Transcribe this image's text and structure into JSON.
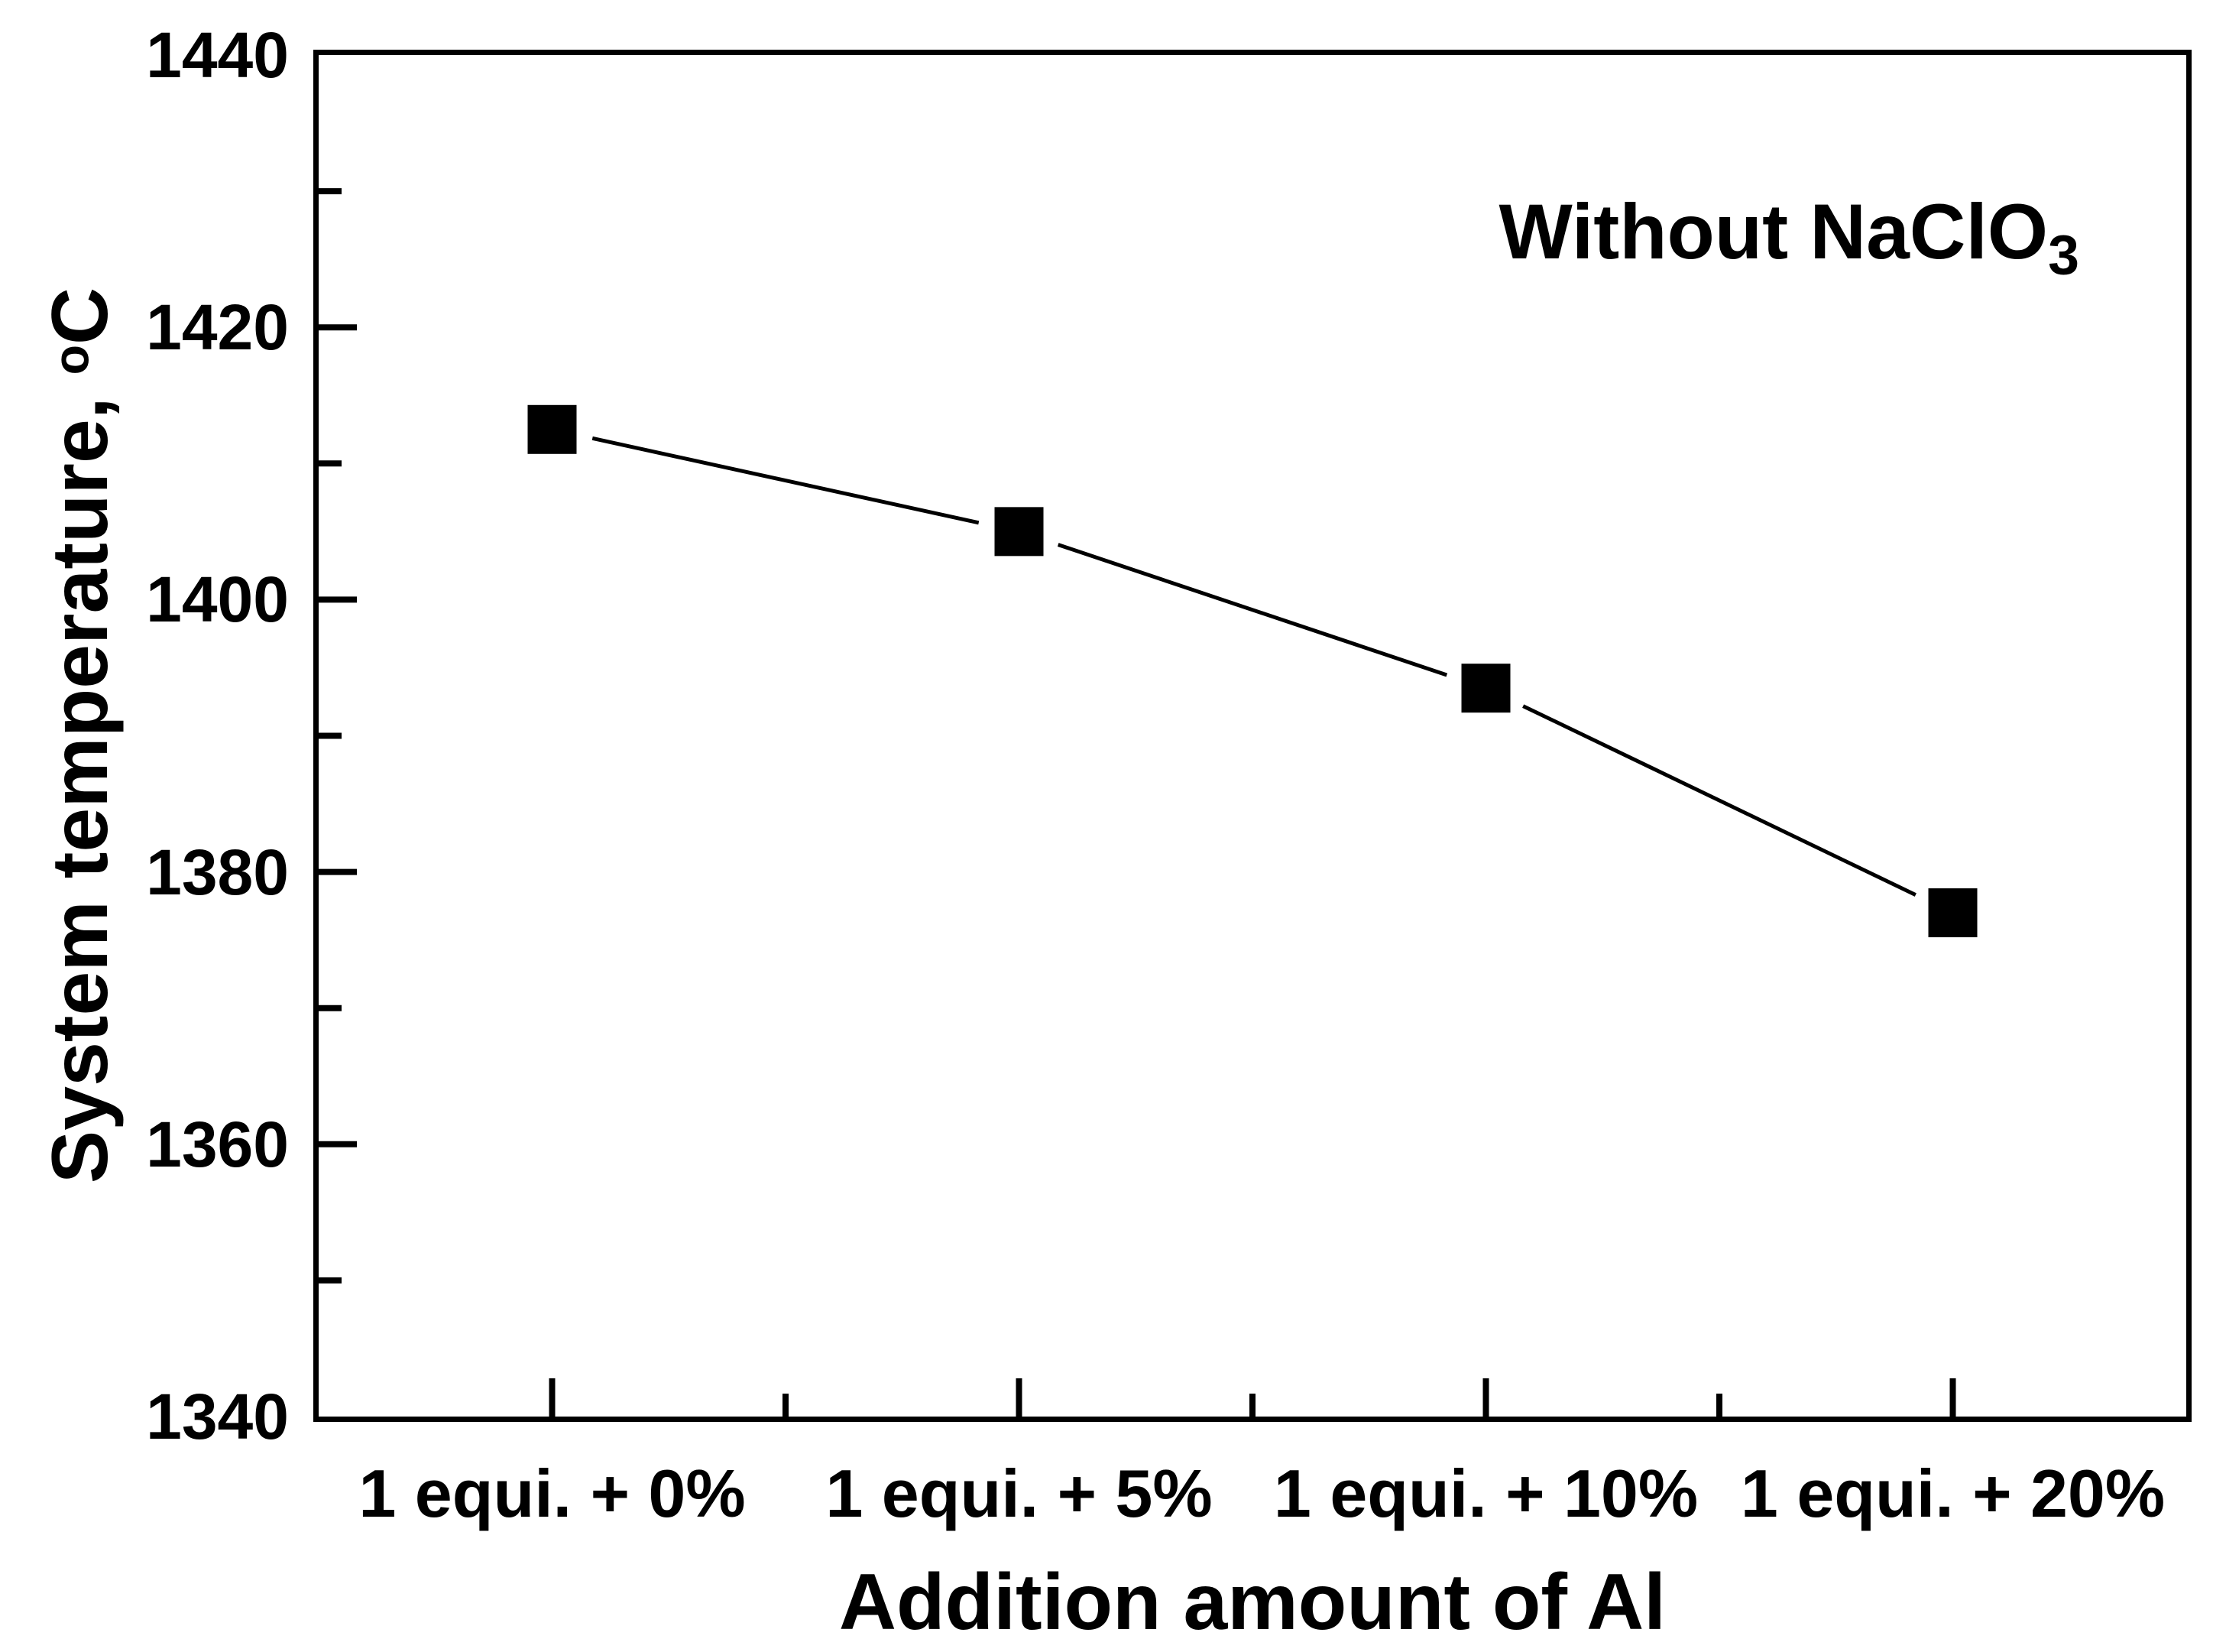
{
  "figure": {
    "annotation": {
      "prefix": "Without NaClO",
      "sub": "3"
    },
    "y_axis_title": {
      "prefix": "System temperature, ",
      "sup": "o",
      "suffix": "C"
    },
    "x_axis_title": "Addition amount of Al"
  },
  "chart_data": {
    "type": "line",
    "title": "",
    "annotation": "Without NaClO3",
    "xlabel": "Addition amount of Al",
    "ylabel": "System temperature, oC",
    "categories": [
      "1 equi. + 0%",
      "1 equi. + 5%",
      "1 equi. + 10%",
      "1 equi. + 20%"
    ],
    "values": [
      1412.5,
      1405,
      1393.5,
      1377
    ],
    "ylim": [
      1340,
      1440
    ],
    "yticks": [
      1440,
      1420,
      1400,
      1380,
      1360,
      1340
    ],
    "y_major_step": 20,
    "y_minor_step": 10,
    "grid": false,
    "legend": "none",
    "marker": "filled-square",
    "marker_size_px": 64,
    "line_color": "#000000",
    "marker_color": "#000000",
    "axis_color": "#000000",
    "background": "#ffffff"
  }
}
